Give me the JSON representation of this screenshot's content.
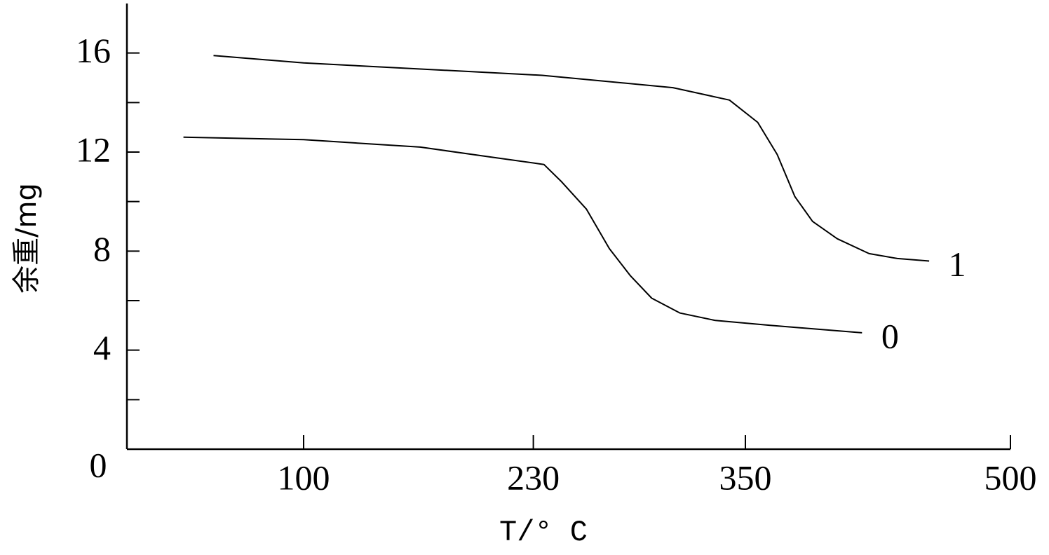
{
  "chart_data": {
    "type": "line",
    "x_label": "T/° C",
    "y_label": "余重/mg",
    "xlim": [
      0,
      500
    ],
    "xticks": [
      100,
      230,
      350,
      500
    ],
    "ylim": [
      0,
      18
    ],
    "yticks": [
      0,
      4,
      8,
      12,
      16
    ],
    "yminorticks": [
      2,
      6,
      10,
      14
    ],
    "series": [
      {
        "name": "1",
        "color": "#000000",
        "x": [
          49,
          100,
          235,
          309,
          341,
          357,
          368,
          378,
          388,
          402,
          420,
          436,
          454
        ],
        "values": [
          15.9,
          15.6,
          15.1,
          14.6,
          14.1,
          13.2,
          11.9,
          10.2,
          9.2,
          8.5,
          7.9,
          7.7,
          7.6
        ]
      },
      {
        "name": "0",
        "color": "#000000",
        "x": [
          32,
          100,
          166,
          206,
          236,
          246,
          260,
          273,
          285,
          297,
          313,
          333,
          364,
          416
        ],
        "values": [
          12.6,
          12.5,
          12.2,
          11.8,
          11.5,
          10.8,
          9.7,
          8.1,
          7.0,
          6.1,
          5.5,
          5.2,
          5.0,
          4.7
        ]
      }
    ]
  }
}
